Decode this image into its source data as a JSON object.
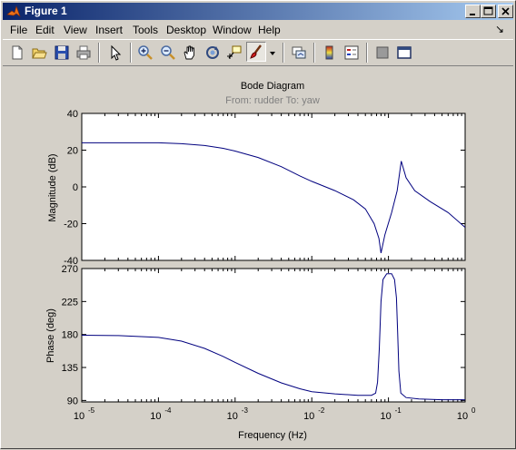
{
  "window": {
    "title": "Figure 1"
  },
  "menu": {
    "items": [
      "File",
      "Edit",
      "View",
      "Insert",
      "Tools",
      "Desktop",
      "Window",
      "Help"
    ],
    "corner_glyph": "↘"
  },
  "toolbar": {
    "icons": [
      "new-figure-icon",
      "open-file-icon",
      "save-icon",
      "print-icon",
      "pointer-icon",
      "zoom-in-icon",
      "zoom-out-icon",
      "pan-icon",
      "rotate-icon",
      "data-cursor-icon",
      "brush-icon",
      "brush-dropdown-icon",
      "link-plot-icon",
      "colorbar-icon",
      "legend-icon",
      "hide-tools-icon",
      "show-tools-icon"
    ]
  },
  "colors": {
    "trace": "#00007f",
    "plot_bg": "#ffffff",
    "figure_bg": "#d4d0c8"
  },
  "chart_data": [
    {
      "type": "line",
      "title": "Bode Diagram",
      "subtitle": "From: rudder  To: yaw",
      "xlabel": "",
      "ylabel": "Magnitude (dB)",
      "x_scale": "log",
      "xlim": [
        1e-05,
        1
      ],
      "ylim": [
        -40,
        40
      ],
      "yticks": [
        "-40",
        "-20",
        "0",
        "20",
        "40"
      ],
      "grid": false,
      "series": [
        {
          "x": [
            1e-05,
            3e-05,
            0.0001,
            0.0002,
            0.0004,
            0.0007,
            0.001,
            0.002,
            0.004,
            0.007,
            0.01,
            0.02,
            0.035,
            0.05,
            0.065,
            0.075,
            0.08,
            0.09,
            0.11,
            0.13,
            0.147,
            0.17,
            0.22,
            0.35,
            0.6,
            1.0
          ],
          "y": [
            24,
            24,
            24,
            23.5,
            22.5,
            21,
            19.5,
            16,
            11,
            6,
            3,
            -2,
            -7,
            -12,
            -20,
            -28,
            -36,
            -26,
            -14,
            -2,
            14,
            5,
            -2,
            -8,
            -14,
            -22
          ]
        }
      ]
    },
    {
      "type": "line",
      "xlabel": "Frequency  (Hz)",
      "ylabel": "Phase (deg)",
      "x_scale": "log",
      "xlim": [
        1e-05,
        1
      ],
      "ylim": [
        88,
        270
      ],
      "yticks": [
        "90",
        "135",
        "180",
        "225",
        "270"
      ],
      "xticks": [
        "10^-5",
        "10^-4",
        "10^-3",
        "10^-2",
        "10^-1",
        "10^0"
      ],
      "grid": false,
      "series": [
        {
          "x": [
            1e-05,
            3e-05,
            0.0001,
            0.0002,
            0.0004,
            0.0007,
            0.001,
            0.002,
            0.004,
            0.007,
            0.01,
            0.02,
            0.04,
            0.06,
            0.068,
            0.072,
            0.076,
            0.08,
            0.085,
            0.095,
            0.11,
            0.12,
            0.127,
            0.132,
            0.137,
            0.145,
            0.17,
            0.25,
            0.5,
            1.0
          ],
          "y": [
            179,
            178.5,
            176,
            171,
            161,
            150,
            142,
            127,
            114,
            106,
            102,
            99,
            97,
            97,
            100,
            115,
            160,
            225,
            255,
            263,
            263,
            255,
            230,
            180,
            130,
            100,
            94,
            92,
            91,
            91
          ]
        }
      ]
    }
  ]
}
